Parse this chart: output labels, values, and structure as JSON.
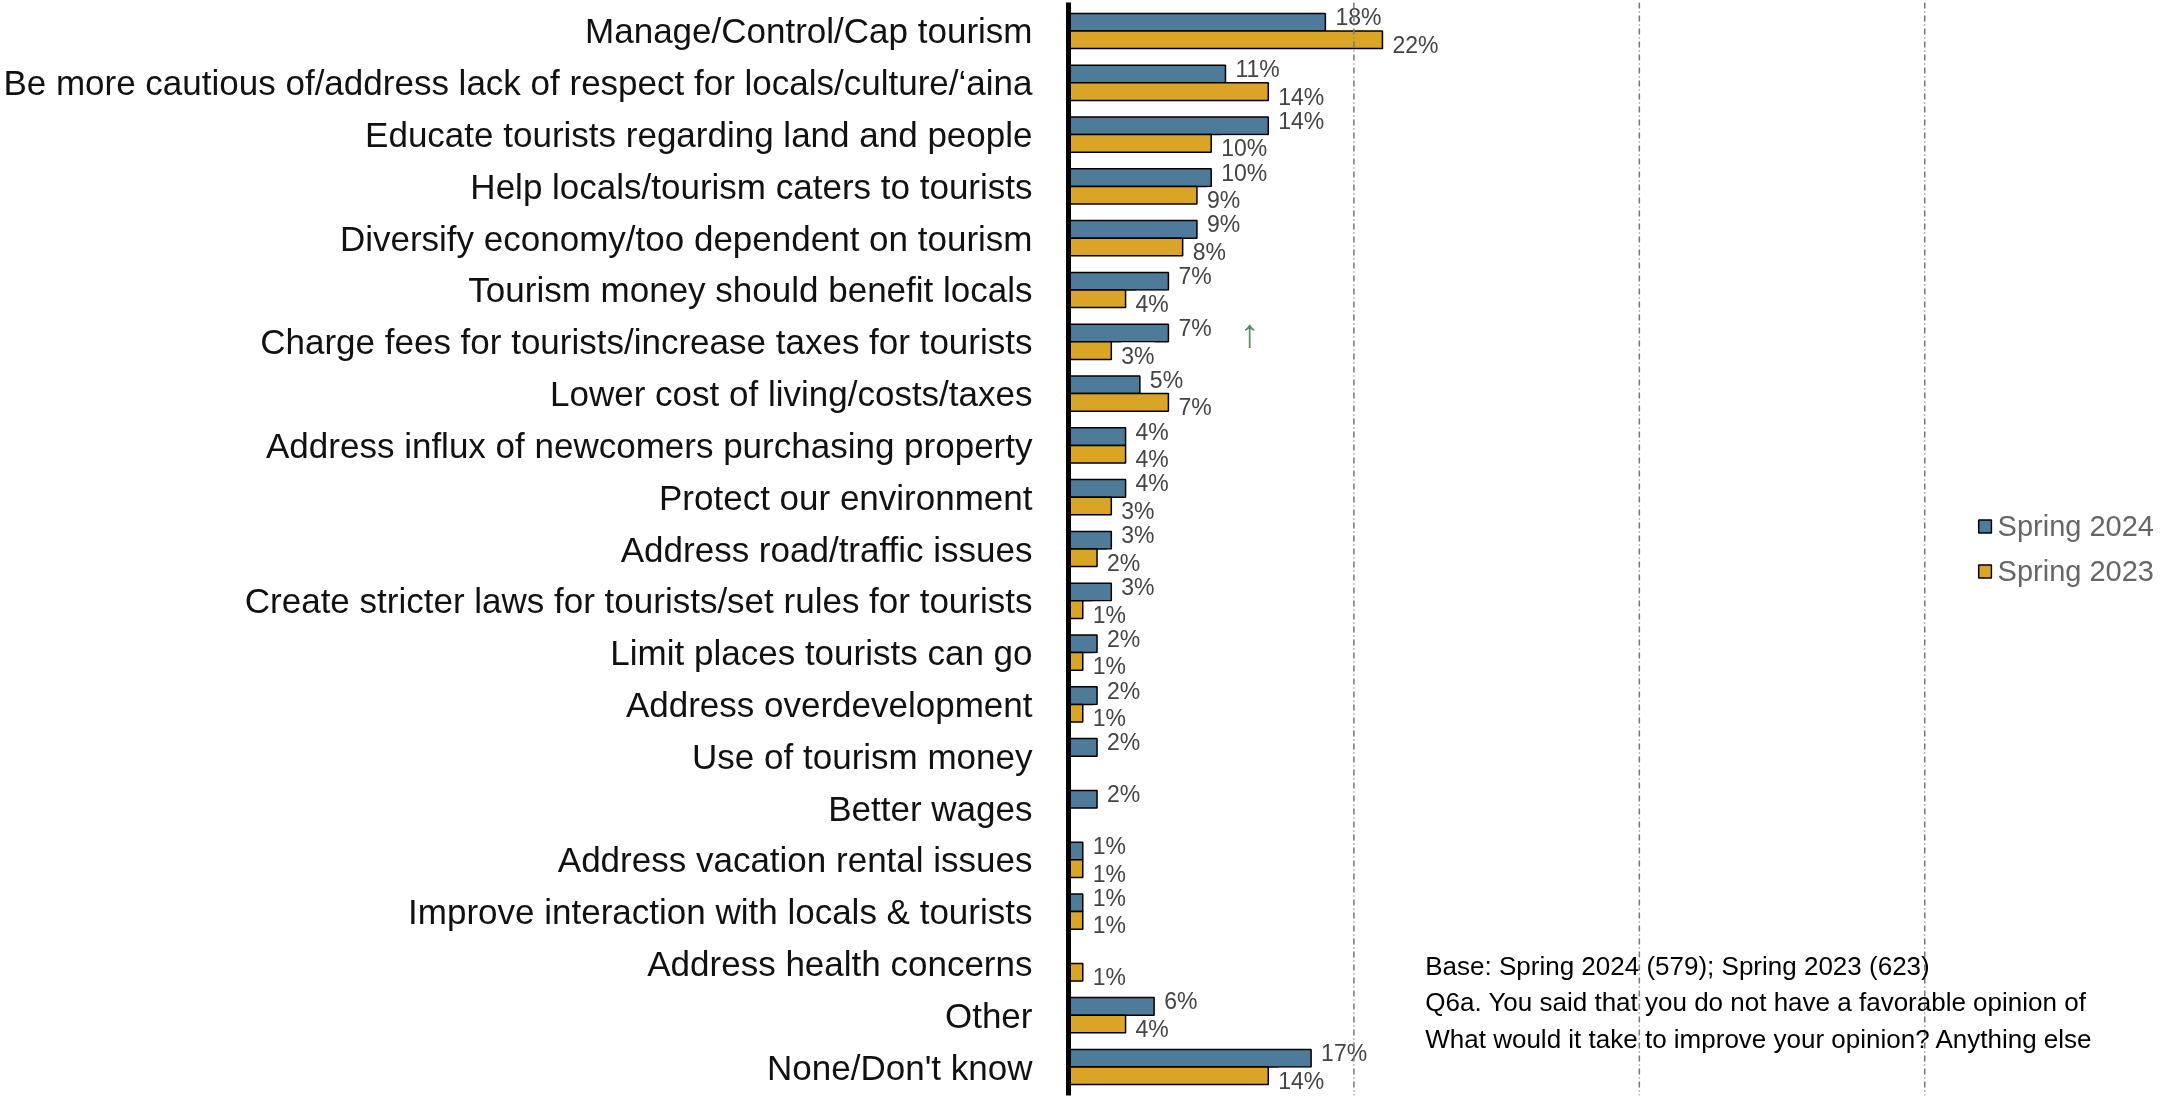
{
  "chart_data": {
    "type": "bar",
    "orientation": "horizontal",
    "categories": [
      "Manage/Control/Cap tourism",
      "Be more cautious of/address lack of respect for locals/culture/‘aina",
      "Educate tourists regarding land and people",
      "Help locals/tourism caters to tourists",
      "Diversify economy/too dependent on tourism",
      "Tourism money should benefit locals",
      "Charge fees for tourists/increase taxes for tourists",
      "Lower cost of living/costs/taxes",
      "Address influx of newcomers purchasing property",
      "Protect our environment",
      "Address road/traffic issues",
      "Create stricter laws for tourists/set rules for tourists",
      "Limit places tourists can go",
      "Address overdevelopment",
      "Use of tourism money",
      "Better wages",
      "Address vacation rental issues",
      "Improve interaction with locals & tourists",
      "Address health concerns",
      "Other",
      "None/Don't know"
    ],
    "series": [
      {
        "name": "Spring 2024",
        "color": "#4e7b99",
        "values": [
          18,
          11,
          14,
          10,
          9,
          7,
          7,
          5,
          4,
          4,
          3,
          3,
          2,
          2,
          2,
          2,
          1,
          1,
          null,
          6,
          17
        ],
        "value_labels": [
          "18%",
          "11%",
          "14%",
          "10%",
          "9%",
          "7%",
          "7%",
          "5%",
          "4%",
          "4%",
          "3%",
          "3%",
          "2%",
          "2%",
          "2%",
          "2%",
          "1%",
          "1%",
          null,
          "6%",
          "17%"
        ]
      },
      {
        "name": "Spring 2023",
        "color": "#daa427",
        "values": [
          22,
          14,
          10,
          9,
          8,
          4,
          3,
          7,
          4,
          3,
          2,
          1,
          1,
          1,
          null,
          null,
          1,
          1,
          1,
          4,
          14
        ],
        "value_labels": [
          "22%",
          "14%",
          "10%",
          "9%",
          "8%",
          "4%",
          "3%",
          "7%",
          "4%",
          "3%",
          "2%",
          "1%",
          "1%",
          "1%",
          null,
          null,
          "1%",
          "1%",
          "1%",
          "4%",
          "14%"
        ]
      }
    ],
    "data_labels": true,
    "ref_lines": [
      {
        "axis": "x",
        "value": 20,
        "color": "#777777",
        "line_style": "dashed"
      },
      {
        "axis": "x",
        "value": 40,
        "color": "#777777",
        "line_style": "dashed"
      },
      {
        "axis": "x",
        "value": 60,
        "color": "#777777",
        "line_style": "dashed"
      }
    ],
    "tick_labels": "y",
    "legend": "right",
    "annotations": [
      "↑",
      "Base: Spring 2024 (579); Spring 2023 (623)",
      "Q6a. You said that you do not have a favorable opinion of",
      "What would it take to improve your opinion? Anything else"
    ]
  }
}
